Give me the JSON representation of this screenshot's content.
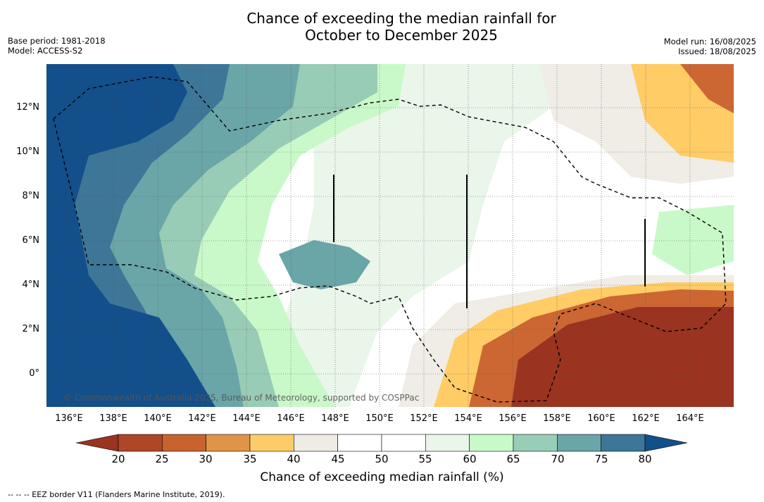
{
  "title_line1": "Chance of exceeding the median rainfall for",
  "title_line2": "October to December 2025",
  "meta_left": {
    "base_period": "Base period: 1981-2018",
    "model": "Model: ACCESS-S2"
  },
  "meta_right": {
    "model_run": "Model run: 16/08/2025",
    "issued": "Issued: 18/08/2025"
  },
  "map": {
    "lat_labels": [
      "12°N",
      "10°N",
      "8°N",
      "6°N",
      "4°N",
      "2°N",
      "0°"
    ],
    "lon_labels": [
      "136°E",
      "138°E",
      "140°E",
      "142°E",
      "144°E",
      "146°E",
      "148°E",
      "150°E",
      "152°E",
      "154°E",
      "156°E",
      "158°E",
      "160°E",
      "162°E",
      "164°E"
    ],
    "copyright": "© Commonwealth of Australia 2025, Bureau of Meteorology, supported by COSPPac",
    "eez_line_style": "dashed",
    "region_colors": {
      "very_dry": "#9a3320",
      "dry": "#cc6633",
      "dryish": "#ffcc66",
      "neutral_low": "#f0ece6",
      "neutral": "#ffffff",
      "wetish": "#eaf6ea",
      "wet_light": "#c9f9c9",
      "wet": "#99ccb6",
      "wet_more": "#6aa5a8",
      "wetter": "#3d7697",
      "very_wet": "#134f8a"
    }
  },
  "colorbar": {
    "ticks": [
      "20",
      "25",
      "30",
      "35",
      "40",
      "45",
      "50",
      "55",
      "60",
      "65",
      "70",
      "75",
      "80"
    ],
    "colors": [
      "#ae4627",
      "#c8622f",
      "#df9448",
      "#fdcc69",
      "#efebe5",
      "#ffffff",
      "#ffffff",
      "#eaf6ea",
      "#c8fac8",
      "#98cdb8",
      "#6aa5a8",
      "#3d7697"
    ],
    "under_color": "#9a3320",
    "over_color": "#134f8a",
    "label": "Chance of exceeding median rainfall (%)"
  },
  "footnote": "--  --  -- EEZ border V11 (Flanders Marine Institute, 2019)."
}
